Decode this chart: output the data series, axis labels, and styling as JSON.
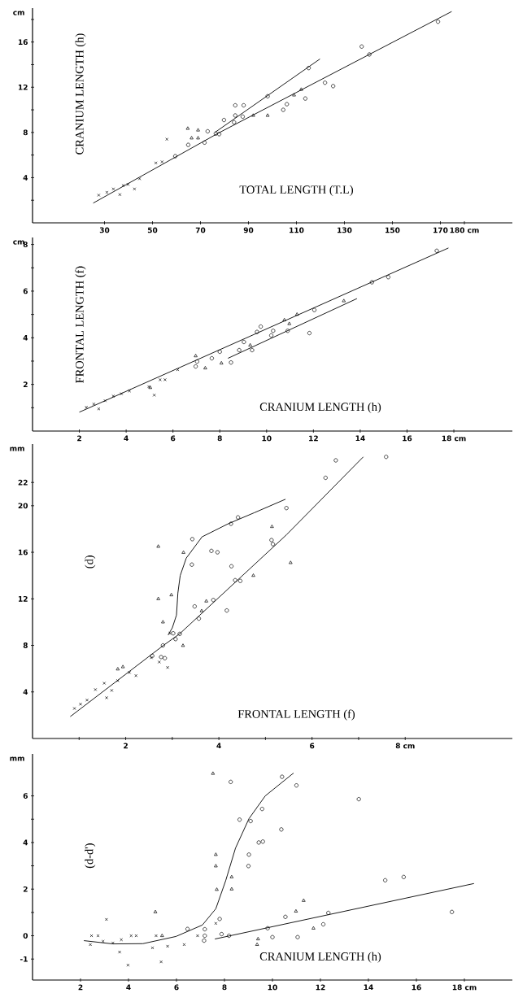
{
  "chart_data": [
    {
      "type": "scatter",
      "xlabel": "TOTAL LENGTH (T.L)",
      "ylabel": "CRANIUM LENGTH (h)",
      "annotations": [
        "cm"
      ],
      "xlim": [
        0,
        200
      ],
      "ylim": [
        0,
        19
      ],
      "xticks": [
        30,
        50,
        70,
        90,
        110,
        130,
        150,
        170,
        {
          "value": 180,
          "label": "180 cm"
        }
      ],
      "yticks": [
        {
          "value": 2,
          "label": null
        },
        4,
        {
          "value": 6,
          "label": null
        },
        8,
        {
          "value": 10,
          "label": null
        },
        12,
        {
          "value": 14,
          "label": null
        },
        16,
        {
          "value": 18,
          "label": null
        }
      ],
      "series": [
        {
          "type": "scatter",
          "marker": "cross",
          "color": "#000000",
          "x": [
            27.6,
            31,
            33.7,
            36.4,
            37.8,
            39.8,
            42.5,
            44.6,
            56,
            51.4,
            54
          ],
          "values": [
            2.45,
            2.7,
            3.0,
            2.5,
            3.3,
            3.4,
            3.0,
            3.9,
            7.4,
            5.3,
            5.4
          ]
        },
        {
          "type": "scatter",
          "marker": "triangle",
          "color": "#000000",
          "x": [
            64.7,
            69,
            66.3,
            92,
            109,
            112,
            98,
            69
          ],
          "values": [
            8.35,
            8.2,
            7.5,
            9.5,
            11.3,
            11.8,
            9.5,
            7.5
          ]
        },
        {
          "type": "scatter",
          "marker": "circle",
          "color": "#000000",
          "x": [
            64.9,
            71.7,
            73,
            76.4,
            77.8,
            79.8,
            84,
            84.5,
            88,
            87.6,
            84.5,
            98,
            104.5,
            106,
            113.7,
            121.9,
            125.3,
            115.1,
            137.2,
            140.4,
            169,
            59.5
          ],
          "values": [
            6.9,
            7.1,
            8.1,
            7.9,
            7.85,
            9.1,
            8.9,
            10.4,
            10.4,
            9.4,
            9.5,
            11.2,
            10.0,
            10.5,
            11.0,
            12.4,
            12.1,
            13.7,
            15.6,
            14.9,
            17.8,
            5.9
          ]
        },
        {
          "type": "line",
          "marker": "none",
          "color": "#000000",
          "x": [
            25.3,
            77.1,
            174.7
          ],
          "values": [
            1.75,
            7.9,
            18.7
          ]
        },
        {
          "type": "line",
          "marker": "none",
          "color": "#000000",
          "x": [
            76,
            119.8
          ],
          "values": [
            8.0,
            14.5
          ]
        }
      ]
    },
    {
      "type": "scatter",
      "xlabel": "CRANIUM LENGTH (h)",
      "ylabel": "FRONTAL LENGTH (f)",
      "annotations": [
        "cm"
      ],
      "xlim": [
        0,
        20.5
      ],
      "ylim": [
        0,
        8.3
      ],
      "xticks": [
        2,
        4,
        6,
        8,
        10,
        12,
        14,
        16,
        {
          "value": 18,
          "label": "18 cm"
        }
      ],
      "yticks": [
        {
          "value": 1,
          "label": null
        },
        2,
        {
          "value": 3,
          "label": null
        },
        4,
        {
          "value": 5,
          "label": null
        },
        6,
        {
          "value": 7,
          "label": null
        },
        8
      ],
      "series": [
        {
          "type": "scatter",
          "marker": "cross",
          "color": "#000000",
          "x": [
            2.3,
            2.62,
            2.83,
            3.1,
            3.45,
            3.8,
            4.14,
            4.97,
            5.2,
            5.45,
            5.66,
            6.2
          ],
          "values": [
            1.02,
            1.16,
            0.95,
            1.3,
            1.5,
            1.6,
            1.72,
            1.9,
            1.54,
            2.2,
            2.2,
            2.63
          ]
        },
        {
          "type": "scatter",
          "marker": "triangle",
          "color": "#000000",
          "x": [
            6.97,
            7.38,
            8.07,
            9.3,
            10.76,
            10.97,
            11.3,
            13.3,
            5.03
          ],
          "values": [
            3.22,
            2.7,
            2.91,
            3.68,
            4.76,
            4.6,
            5.0,
            5.58,
            1.86
          ]
        },
        {
          "type": "scatter",
          "marker": "circle",
          "color": "#000000",
          "x": [
            6.97,
            7.03,
            7.66,
            8.0,
            8.48,
            8.83,
            9.03,
            9.38,
            9.59,
            9.75,
            10.2,
            10.28,
            10.9,
            11.83,
            12.04,
            14.5,
            15.2,
            17.27
          ],
          "values": [
            2.77,
            2.98,
            3.12,
            3.4,
            2.94,
            3.47,
            3.82,
            3.47,
            4.25,
            4.48,
            4.1,
            4.3,
            4.3,
            4.2,
            5.19,
            6.38,
            6.6,
            7.73
          ]
        },
        {
          "type": "line",
          "marker": "none",
          "color": "#000000",
          "x": [
            2.0,
            17.77
          ],
          "values": [
            0.81,
            7.85
          ]
        },
        {
          "type": "line",
          "marker": "none",
          "color": "#000000",
          "x": [
            8.35,
            13.86
          ],
          "values": [
            3.12,
            5.68
          ]
        }
      ]
    },
    {
      "type": "scatter",
      "xlabel": "FRONTAL LENGTH (f)",
      "ylabel": "(d)",
      "annotations": [
        "mm"
      ],
      "xlim": [
        0,
        10.3
      ],
      "ylim": [
        0,
        25.3
      ],
      "xticks": [
        {
          "value": 1,
          "label": null
        },
        2,
        {
          "value": 3,
          "label": null
        },
        4,
        {
          "value": 5,
          "label": null
        },
        6,
        {
          "value": 7,
          "label": null
        },
        {
          "value": 8,
          "label": "8 cm"
        }
      ],
      "yticks": [
        4,
        8,
        12,
        16,
        20,
        22
      ],
      "series": [
        {
          "type": "scatter",
          "marker": "cross",
          "color": "#000000",
          "x": [
            0.9,
            1.03,
            1.17,
            1.35,
            1.54,
            1.7,
            1.59,
            1.83,
            2.08,
            2.22,
            2.55,
            2.72,
            2.9,
            2.95
          ],
          "values": [
            2.58,
            2.95,
            3.3,
            4.2,
            4.75,
            4.13,
            3.5,
            4.97,
            5.67,
            5.4,
            6.94,
            6.57,
            6.1,
            9.04
          ]
        },
        {
          "type": "scatter",
          "marker": "triangle",
          "color": "#000000",
          "x": [
            1.83,
            1.94,
            2.7,
            2.7,
            2.8,
            2.98,
            3.24,
            3.23,
            3.63,
            3.73,
            4.74,
            5.14,
            5.54
          ],
          "values": [
            5.96,
            6.15,
            16.5,
            12.0,
            10.0,
            12.33,
            15.98,
            7.98,
            10.96,
            11.8,
            14.0,
            18.2,
            15.1
          ]
        },
        {
          "type": "scatter",
          "marker": "circle",
          "color": "#000000",
          "x": [
            2.8,
            2.76,
            2.84,
            2.57,
            3.02,
            3.07,
            3.16,
            3.43,
            3.42,
            3.48,
            3.57,
            3.84,
            3.97,
            3.88,
            4.17,
            4.26,
            4.27,
            4.35,
            4.46,
            4.41,
            5.13,
            5.16,
            5.45,
            6.29,
            6.51,
            7.59
          ],
          "values": [
            8.0,
            7.0,
            6.9,
            7.1,
            9.04,
            8.54,
            8.99,
            17.13,
            14.94,
            11.35,
            10.3,
            16.12,
            16.0,
            11.9,
            11.0,
            18.45,
            14.8,
            13.6,
            13.54,
            19.0,
            17.05,
            16.7,
            19.8,
            22.4,
            23.9,
            24.2
          ]
        },
        {
          "type": "line",
          "marker": "none",
          "color": "#000000",
          "x": [
            0.81,
            2.81,
            3.16,
            5.45,
            7.1
          ],
          "values": [
            1.88,
            8.0,
            9.0,
            17.5,
            24.2
          ]
        },
        {
          "type": "line",
          "marker": "none",
          "color": "#000000",
          "x": [
            2.91,
            3.0,
            3.09,
            3.12,
            3.17,
            3.3,
            3.64,
            4.2,
            4.76,
            5.43
          ],
          "values": [
            8.9,
            9.5,
            10.6,
            12.5,
            14.0,
            15.5,
            17.33,
            18.45,
            19.4,
            20.56
          ]
        }
      ]
    },
    {
      "type": "scatter",
      "xlabel": "CRANIUM LENGTH (h)",
      "ylabel": "(d-d')",
      "annotations": [
        "mm"
      ],
      "xlim": [
        0,
        20
      ],
      "ylim": [
        -1.9,
        7.8
      ],
      "xticks": [
        2,
        4,
        6,
        8,
        10,
        12,
        14,
        16,
        {
          "value": 18,
          "label": "18 cm"
        }
      ],
      "yticks": [
        -1,
        0,
        {
          "value": 1,
          "label": null
        },
        2,
        {
          "value": 3,
          "label": null
        },
        4,
        {
          "value": 5,
          "label": null
        },
        6
      ],
      "series": [
        {
          "type": "scatter",
          "marker": "cross",
          "color": "#000000",
          "x": [
            2.41,
            2.46,
            2.73,
            3.08,
            2.94,
            3.35,
            3.63,
            3.7,
            3.98,
            4.11,
            4.32,
            5.0,
            5.15,
            5.36,
            5.63,
            6.32,
            6.88,
            7.64
          ],
          "values": [
            -0.38,
            0,
            0,
            0.7,
            -0.24,
            -0.31,
            -0.7,
            -0.17,
            -1.26,
            0,
            0,
            -0.52,
            0,
            -1.12,
            -0.45,
            -0.38,
            0,
            0.53
          ]
        },
        {
          "type": "scatter",
          "marker": "triangle",
          "color": "#000000",
          "x": [
            5.12,
            5.4,
            7.52,
            7.64,
            7.64,
            7.68,
            8.3,
            8.3,
            9.4,
            9.36,
            10.98,
            11.3,
            11.71
          ],
          "values": [
            1.02,
            0,
            6.96,
            3.48,
            2.99,
            1.98,
            2.52,
            2.0,
            -0.14,
            -0.38,
            1.05,
            1.51,
            0.32
          ]
        },
        {
          "type": "scatter",
          "marker": "circle",
          "color": "#000000",
          "x": [
            6.46,
            7.15,
            7.18,
            7.18,
            7.8,
            7.88,
            8.19,
            8.26,
            8.63,
            9.02,
            9.0,
            9.09,
            9.43,
            9.6,
            9.57,
            9.8,
            10.0,
            10.37,
            10.4,
            10.54,
            11.0,
            11.05,
            12.12,
            12.33,
            13.6,
            14.7,
            15.47,
            17.48
          ],
          "values": [
            0.29,
            -0.21,
            0.28,
            0,
            0.72,
            0.07,
            0,
            6.6,
            4.98,
            3.48,
            2.99,
            4.92,
            4.0,
            4.04,
            5.44,
            0.32,
            -0.06,
            4.56,
            6.82,
            0.81,
            6.45,
            -0.06,
            0.49,
            0.98,
            5.86,
            2.38,
            2.52,
            1.02
          ]
        },
        {
          "type": "line",
          "marker": "none",
          "color": "#000000",
          "x": [
            2.14,
            3.35,
            4.6,
            5.98,
            7.08,
            7.64,
            8.05,
            8.46,
            9.02,
            9.7,
            10.88
          ],
          "values": [
            -0.21,
            -0.35,
            -0.34,
            -0.03,
            0.46,
            1.16,
            2.36,
            3.76,
            5.02,
            6.0,
            6.98
          ]
        },
        {
          "type": "line",
          "marker": "none",
          "color": "#000000",
          "x": [
            7.6,
            18.4
          ],
          "values": [
            -0.14,
            2.24
          ]
        }
      ]
    }
  ]
}
